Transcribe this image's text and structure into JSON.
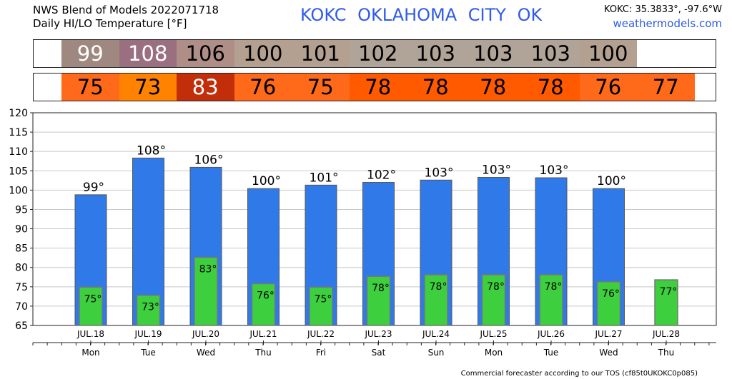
{
  "header": {
    "model_title": "NWS Blend of Models 2022071718",
    "subtitle": "Daily HI/LO Temperature [°F]",
    "station": "KOKC   OKLAHOMA CITY   OK",
    "coords": "KOKC: 35.3833°, -97.6°W",
    "site": "weathermodels.com"
  },
  "footer": "Commercial forecaster according to our TOS (cf85t0UKOKC0p085)",
  "colors": {
    "hi_bar": "#2f7ae8",
    "lo_bar": "#3ecf3e",
    "station_text": "#2f5be8",
    "hi_cells": [
      "#9f8880",
      "#9a7080",
      "#b08e88",
      "#b4a090",
      "#b4a090",
      "#b0a498",
      "#b0a498",
      "#b0a498",
      "#b0a498",
      "#b4a090"
    ],
    "lo_cells": [
      "#ff6a1a",
      "#ff8300",
      "#c22e0a",
      "#ff6a1a",
      "#ff6a1a",
      "#ff5a00",
      "#ff5a00",
      "#ff5a00",
      "#ff5a00",
      "#ff6a1a",
      "#ff6a1a"
    ],
    "hi_text": [
      "#ffffff",
      "#ffffff",
      "#000000",
      "#000000",
      "#000000",
      "#000000",
      "#000000",
      "#000000",
      "#000000",
      "#000000"
    ],
    "lo_text": [
      "#000000",
      "#000000",
      "#ffffff",
      "#000000",
      "#000000",
      "#000000",
      "#000000",
      "#000000",
      "#000000",
      "#000000",
      "#000000"
    ]
  },
  "chart_data": {
    "type": "bar",
    "title": "Daily HI/LO Temperature [°F]",
    "categories": [
      "JUL.18",
      "JUL.19",
      "JUL.20",
      "JUL.21",
      "JUL.22",
      "JUL.23",
      "JUL.24",
      "JUL.25",
      "JUL.26",
      "JUL.27",
      "JUL.28"
    ],
    "weekdays": [
      "Mon",
      "Tue",
      "Wed",
      "Thu",
      "Fri",
      "Sat",
      "Sun",
      "Mon",
      "Tue",
      "Wed",
      "Thu"
    ],
    "series": [
      {
        "name": "HI",
        "values": [
          99,
          108,
          106,
          100,
          101,
          102,
          103,
          103,
          103,
          100,
          null
        ]
      },
      {
        "name": "LO",
        "values": [
          75,
          73,
          83,
          76,
          75,
          78,
          78,
          78,
          78,
          76,
          77
        ]
      }
    ],
    "bar_values": {
      "hi": [
        98.8,
        108.3,
        105.9,
        100.4,
        101.3,
        102.0,
        102.6,
        103.3,
        103.2,
        100.4,
        null
      ],
      "lo": [
        74.9,
        72.8,
        82.6,
        75.8,
        74.9,
        77.7,
        78.1,
        78.1,
        78.1,
        76.3,
        76.8
      ]
    },
    "ylim": [
      65,
      120
    ],
    "yticks": [
      65,
      70,
      75,
      80,
      85,
      90,
      95,
      100,
      105,
      110,
      115,
      120
    ],
    "grid": true,
    "labels": {
      "hi": [
        "99°",
        "108°",
        "106°",
        "100°",
        "101°",
        "102°",
        "103°",
        "103°",
        "103°",
        "100°",
        ""
      ],
      "lo": [
        "75°",
        "73°",
        "83°",
        "76°",
        "75°",
        "78°",
        "78°",
        "78°",
        "78°",
        "76°",
        "77°"
      ],
      "hi_strip": [
        "99",
        "108",
        "106",
        "100",
        "101",
        "102",
        "103",
        "103",
        "103",
        "100"
      ],
      "lo_strip": [
        "75",
        "73",
        "83",
        "76",
        "75",
        "78",
        "78",
        "78",
        "78",
        "76",
        "77"
      ]
    }
  }
}
